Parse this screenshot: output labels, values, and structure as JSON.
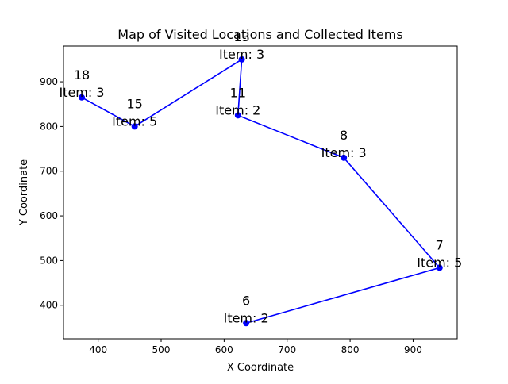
{
  "chart_data": {
    "type": "line",
    "title": "Map of Visited Locations and Collected Items",
    "xlabel": "X Coordinate",
    "ylabel": "Y Coordinate",
    "xlim": [
      345,
      970
    ],
    "ylim": [
      325,
      980
    ],
    "xticks": [
      400,
      500,
      600,
      700,
      800,
      900
    ],
    "yticks": [
      400,
      500,
      600,
      700,
      800,
      900
    ],
    "grid": false,
    "line_color": "#0000ff",
    "point_color": "#0000ff",
    "points": [
      {
        "x": 374,
        "y": 865,
        "id": "18",
        "item": "Item: 3"
      },
      {
        "x": 458,
        "y": 800,
        "id": "15",
        "item": "Item: 5"
      },
      {
        "x": 628,
        "y": 950,
        "id": "13",
        "item": "Item: 3"
      },
      {
        "x": 622,
        "y": 825,
        "id": "11",
        "item": "Item: 2"
      },
      {
        "x": 790,
        "y": 730,
        "id": "8",
        "item": "Item: 3"
      },
      {
        "x": 942,
        "y": 484,
        "id": "7",
        "item": "Item: 5"
      },
      {
        "x": 635,
        "y": 360,
        "id": "6",
        "item": "Item: 2"
      }
    ]
  }
}
